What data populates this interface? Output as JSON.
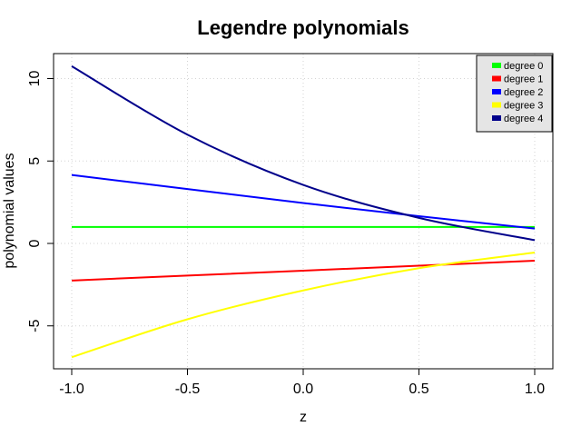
{
  "chart_data": {
    "type": "line",
    "title": "Legendre polynomials",
    "xlabel": "z",
    "ylabel": "polynomial values",
    "xlim": [
      -1.0,
      1.0
    ],
    "ylim": [
      -7.5,
      11.5
    ],
    "x_ticks": [
      -1.0,
      -0.5,
      0.0,
      0.5,
      1.0
    ],
    "x_tick_labels": [
      "-1.0",
      "-0.5",
      "0.0",
      "0.5",
      "1.0"
    ],
    "y_ticks": [
      -5,
      0,
      5,
      10
    ],
    "y_tick_labels": [
      "-5",
      "0",
      "5",
      "10"
    ],
    "grid": true,
    "legend_position": "top-right",
    "x": [
      -1.0,
      -0.5,
      0.0,
      0.5,
      1.0
    ],
    "series": [
      {
        "name": "degree 0",
        "color": "#00ff00",
        "values": [
          1.0,
          1.0,
          1.0,
          1.0,
          1.0
        ]
      },
      {
        "name": "degree 1",
        "color": "#ff0000",
        "values": [
          -2.25,
          -1.95,
          -1.65,
          -1.35,
          -1.05
        ]
      },
      {
        "name": "degree 2",
        "color": "#0000ff",
        "values": [
          4.15,
          3.3,
          2.45,
          1.65,
          0.9
        ]
      },
      {
        "name": "degree 3",
        "color": "#ffff00",
        "values": [
          -6.9,
          -4.6,
          -2.85,
          -1.5,
          -0.55
        ]
      },
      {
        "name": "degree 4",
        "color": "#00008b",
        "values": [
          10.75,
          6.6,
          3.55,
          1.55,
          0.2
        ]
      }
    ]
  }
}
